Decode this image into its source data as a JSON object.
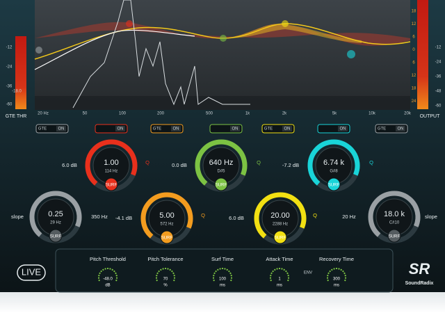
{
  "graph": {
    "input_scale": [
      "-12",
      "-24",
      "-36",
      "-60"
    ],
    "input_readout": "-18.0",
    "input_label": "GTE THR",
    "gain_scale": [
      "18",
      "12",
      "6",
      "0",
      "6",
      "12",
      "18",
      "24"
    ],
    "output_scale": [
      "-12",
      "-24",
      "-36",
      "-48",
      "-60"
    ],
    "output_label": "OUTPUT",
    "freq_labels": [
      "20 Hz",
      "50",
      "100",
      "200",
      "500",
      "1k",
      "2k",
      "5k",
      "10k",
      "20k"
    ]
  },
  "toggles": [
    {
      "left": "GTE",
      "right": "ON"
    },
    {
      "right": "ON"
    },
    {
      "left": "GTE",
      "right": "ON"
    },
    {
      "right": "ON"
    },
    {
      "left": "GTE",
      "right": "ON"
    },
    {
      "right": "ON"
    },
    {
      "left": "GTE",
      "right": "ON"
    }
  ],
  "bands": [
    {
      "color": "#e8301c",
      "side_label": "6.0 dB",
      "value": "1.00",
      "sub": "114 Hz",
      "button": "SURF",
      "corner": "Q"
    },
    {
      "color": "#7cc243",
      "side_label": "0.0 dB",
      "value": "640 Hz",
      "sub": "D#5",
      "button": "SURF",
      "corner": "Q"
    },
    {
      "color": "#19d4d8",
      "side_label": "-7.2 dB",
      "value": "6.74 k",
      "sub": "G#8",
      "button": "SURF",
      "corner": "Q"
    },
    {
      "color": "#9aa0a4",
      "side_label": "slope",
      "value": "0.25",
      "sub": "29 Hz",
      "button": "SURF",
      "corner": "350 Hz"
    },
    {
      "color": "#f39c1f",
      "side_label": "-4.1 dB",
      "value": "5.00",
      "sub": "572 Hz",
      "button": "SURF",
      "corner": "Q"
    },
    {
      "color": "#f2e012",
      "side_label": "6.0 dB",
      "value": "20.00",
      "sub": "2288 Hz",
      "button": "SURF",
      "corner": "Q"
    },
    {
      "color": "#9aa0a4",
      "side_label": "20 Hz",
      "value": "18.0 k",
      "sub": "C#10",
      "button": "SURF",
      "corner": "slope"
    }
  ],
  "controls": [
    {
      "label": "Pitch Threshold",
      "value": "-48.0",
      "unit": "dB"
    },
    {
      "label": "Pitch Tolerance",
      "value": "70",
      "unit": "%"
    },
    {
      "label": "Surf Time",
      "value": "100",
      "unit": "ms"
    },
    {
      "label": "Attack Time",
      "value": "1",
      "unit": "ms"
    },
    {
      "label": "Recovery Time",
      "value": "300",
      "unit": "ms"
    }
  ],
  "env_label": "ENV",
  "live_button": "LIVE",
  "brand": "SoundRadix"
}
